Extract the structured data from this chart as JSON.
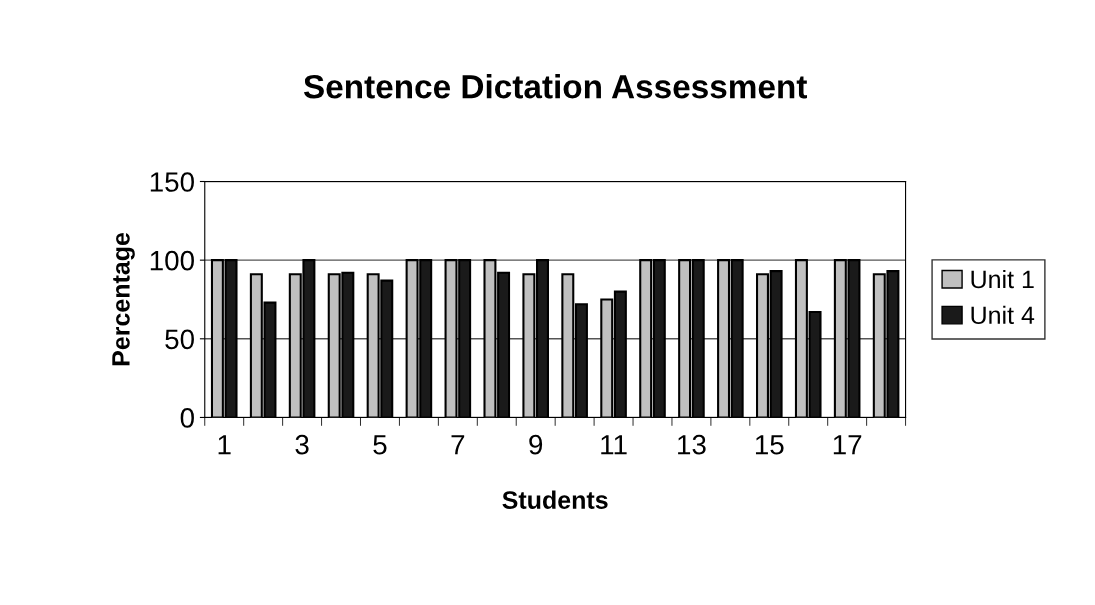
{
  "chart_data": {
    "type": "bar",
    "title": "Sentence Dictation Assessment",
    "xlabel": "Students",
    "ylabel": "Percentage",
    "categories": [
      "1",
      null,
      "3",
      null,
      "5",
      null,
      "7",
      null,
      "9",
      null,
      "11",
      null,
      "13",
      null,
      "15",
      null,
      "17",
      null
    ],
    "series": [
      {
        "name": "Unit 1",
        "color": "#c0c0c0",
        "values": [
          100,
          91,
          91,
          91,
          91,
          100,
          100,
          100,
          91,
          91,
          75,
          100,
          100,
          100,
          91,
          100,
          100,
          91
        ]
      },
      {
        "name": "Unit 4",
        "color": "#1a1a1a",
        "values": [
          100,
          73,
          100,
          92,
          87,
          100,
          100,
          92,
          100,
          72,
          80,
          100,
          100,
          100,
          93,
          67,
          100,
          93
        ]
      }
    ],
    "ylim": [
      0,
      150
    ],
    "yticks": [
      0,
      50,
      100,
      150
    ],
    "grid": "y",
    "legend": "right"
  }
}
